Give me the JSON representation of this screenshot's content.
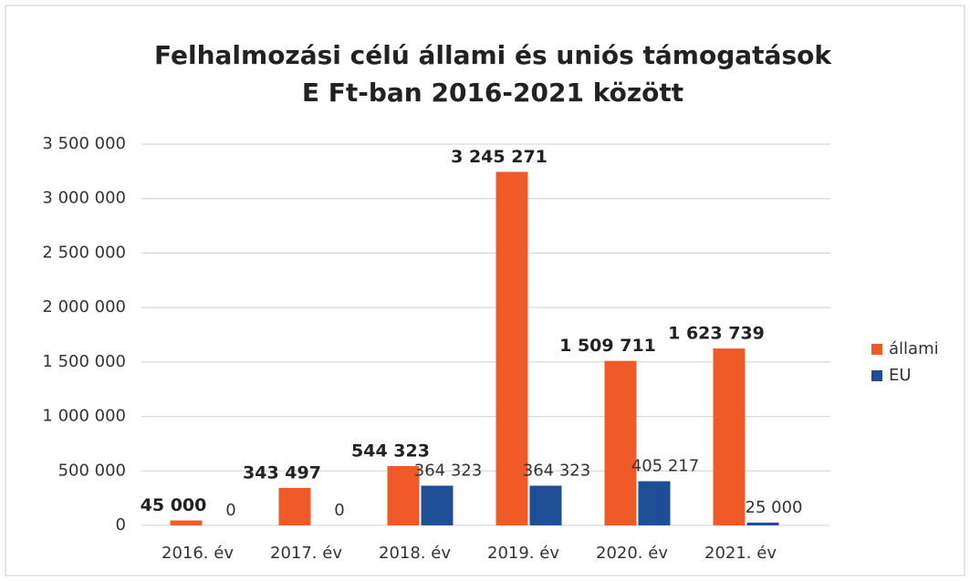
{
  "chart_data": {
    "type": "bar",
    "title": [
      "Felhalmozási célú állami és uniós támogatások",
      "E Ft-ban 2016-2021 között"
    ],
    "categories": [
      "2016. év",
      "2017. év",
      "2018. év",
      "2019. év",
      "2020. év",
      "2021. év"
    ],
    "series": [
      {
        "name": "állami",
        "color": "#f05a28",
        "values": [
          45000,
          343497,
          544323,
          3245271,
          1509711,
          1623739
        ],
        "value_labels": [
          "45 000",
          "343 497",
          "544 323",
          "3 245 271",
          "1 509 711",
          "1 623 739"
        ]
      },
      {
        "name": "EU",
        "color": "#1f4e96",
        "values": [
          0,
          0,
          364323,
          364323,
          405217,
          25000
        ],
        "value_labels": [
          "0",
          "0",
          "364 323",
          "364 323",
          "405 217",
          "25 000"
        ]
      }
    ],
    "ylim": [
      0,
      3500000
    ],
    "yticks": [
      0,
      {
        "value": 500000,
        "label": "500 000"
      },
      {
        "value": 1000000,
        "label": "1 000 000"
      },
      {
        "value": 1500000,
        "label": "1 500 000"
      },
      {
        "value": 2000000,
        "label": "2 000 000"
      },
      {
        "value": 2500000,
        "label": "2 500 000"
      },
      {
        "value": 3000000,
        "label": "3 000 000"
      },
      {
        "value": 3500000,
        "label": "3 500 000"
      }
    ],
    "grid": true,
    "legend": "right"
  }
}
